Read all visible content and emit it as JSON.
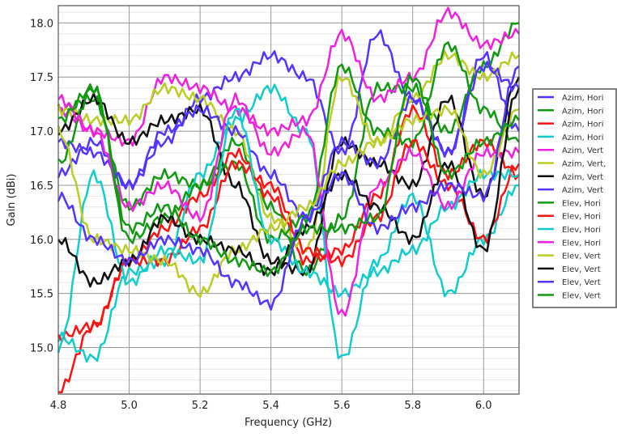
{
  "chart_data": {
    "type": "line",
    "xlabel": "Frequency (GHz)",
    "ylabel": "Gain (dBi)",
    "xlim": [
      4.8,
      6.1
    ],
    "ylim": [
      14.57,
      18.16
    ],
    "xticks": [
      "4.8",
      "5.0",
      "5.2",
      "5.4",
      "5.6",
      "5.8",
      "6.0"
    ],
    "yticks": [
      "15.0",
      "15.5",
      "16.0",
      "16.5",
      "17.0",
      "17.5",
      "18.0"
    ],
    "grid": true,
    "legend_placement": "right",
    "x": [
      4.8,
      4.9,
      5.0,
      5.1,
      5.2,
      5.3,
      5.4,
      5.5,
      5.6,
      5.7,
      5.8,
      5.9,
      6.0,
      6.1
    ],
    "series": [
      {
        "name": "Azim, Hori",
        "color": "#5533ff",
        "values": [
          16.9,
          16.8,
          16.5,
          16.9,
          17.3,
          17.5,
          17.7,
          17.5,
          16.8,
          17.9,
          17.3,
          16.8,
          17.7,
          17.0
        ]
      },
      {
        "name": "Azim, Hori",
        "color": "#119911",
        "values": [
          17.2,
          17.3,
          16.3,
          16.6,
          16.5,
          16.9,
          16.3,
          15.7,
          16.2,
          17.4,
          17.4,
          17.0,
          17.6,
          18.0
        ]
      },
      {
        "name": "Azim, Hori",
        "color": "#ff1111",
        "values": [
          14.6,
          15.2,
          15.8,
          16.1,
          16.4,
          16.8,
          16.4,
          15.8,
          15.9,
          16.4,
          17.2,
          16.6,
          16.9,
          16.6
        ]
      },
      {
        "name": "Azim, Hori",
        "color": "#11cccc",
        "values": [
          15.1,
          14.9,
          15.7,
          15.8,
          16.6,
          17.1,
          17.4,
          17.0,
          14.9,
          15.8,
          16.4,
          15.5,
          16.0,
          16.5
        ]
      },
      {
        "name": "Azim, Vert",
        "color": "#ee22dd",
        "values": [
          17.2,
          17.0,
          16.9,
          17.5,
          17.4,
          17.2,
          17.0,
          17.1,
          17.9,
          17.3,
          17.5,
          18.1,
          17.8,
          17.9
        ]
      },
      {
        "name": "Azim, Vert,",
        "color": "#bbcc22",
        "values": [
          17.2,
          17.1,
          17.1,
          17.4,
          17.3,
          17.0,
          16.2,
          15.9,
          17.5,
          16.9,
          17.3,
          17.7,
          17.5,
          17.7
        ]
      },
      {
        "name": "Azim, Vert",
        "color": "#111111",
        "values": [
          17.0,
          17.3,
          16.9,
          17.1,
          17.2,
          16.5,
          15.8,
          15.7,
          16.9,
          16.7,
          16.5,
          17.3,
          16.4,
          17.5
        ]
      },
      {
        "name": "Azim, Vert",
        "color": "#5533ff",
        "values": [
          16.6,
          16.9,
          16.5,
          17.0,
          17.2,
          17.0,
          16.6,
          16.2,
          16.9,
          16.7,
          17.3,
          16.8,
          17.6,
          17.4
        ]
      },
      {
        "name": "Elev, Hori",
        "color": "#119911",
        "values": [
          16.7,
          17.4,
          16.0,
          16.2,
          16.5,
          16.7,
          16.0,
          16.2,
          17.6,
          17.0,
          16.9,
          17.8,
          17.2,
          16.9
        ]
      },
      {
        "name": "Elev, Hori",
        "color": "#ff1111",
        "values": [
          15.1,
          15.2,
          15.8,
          15.8,
          16.1,
          16.7,
          16.5,
          15.9,
          15.8,
          16.2,
          16.9,
          16.5,
          16.0,
          16.7
        ]
      },
      {
        "name": "Elev, Hori",
        "color": "#11cccc",
        "values": [
          15.0,
          16.6,
          15.6,
          15.9,
          15.8,
          17.2,
          16.0,
          15.7,
          15.5,
          15.7,
          15.9,
          16.3,
          16.6,
          16.6
        ]
      },
      {
        "name": "Elev, Hori",
        "color": "#ee22dd",
        "values": [
          17.3,
          17.0,
          16.3,
          16.5,
          16.2,
          17.3,
          16.8,
          17.0,
          15.3,
          16.5,
          16.8,
          16.3,
          16.8,
          16.8
        ]
      },
      {
        "name": "Elev, Vert",
        "color": "#bbcc22",
        "values": [
          17.0,
          16.0,
          15.9,
          15.8,
          15.5,
          15.9,
          16.1,
          16.3,
          16.7,
          16.9,
          17.1,
          17.2,
          16.6,
          17.2
        ]
      },
      {
        "name": "Elev, Vert",
        "color": "#111111",
        "values": [
          16.0,
          15.6,
          15.8,
          16.2,
          16.0,
          15.9,
          15.7,
          16.1,
          16.6,
          16.3,
          16.0,
          16.7,
          15.9,
          17.4
        ]
      },
      {
        "name": "Elev, Vert",
        "color": "#5533ff",
        "values": [
          16.4,
          16.0,
          15.8,
          16.0,
          15.9,
          15.6,
          15.4,
          16.2,
          16.6,
          16.1,
          16.3,
          16.5,
          16.4,
          17.6
        ]
      },
      {
        "name": "Elev, Vert",
        "color": "#119911",
        "values": [
          17.1,
          17.4,
          16.1,
          16.3,
          16.0,
          15.8,
          15.7,
          16.1,
          16.1,
          16.2,
          17.5,
          16.6,
          16.9,
          17.1
        ]
      }
    ]
  }
}
